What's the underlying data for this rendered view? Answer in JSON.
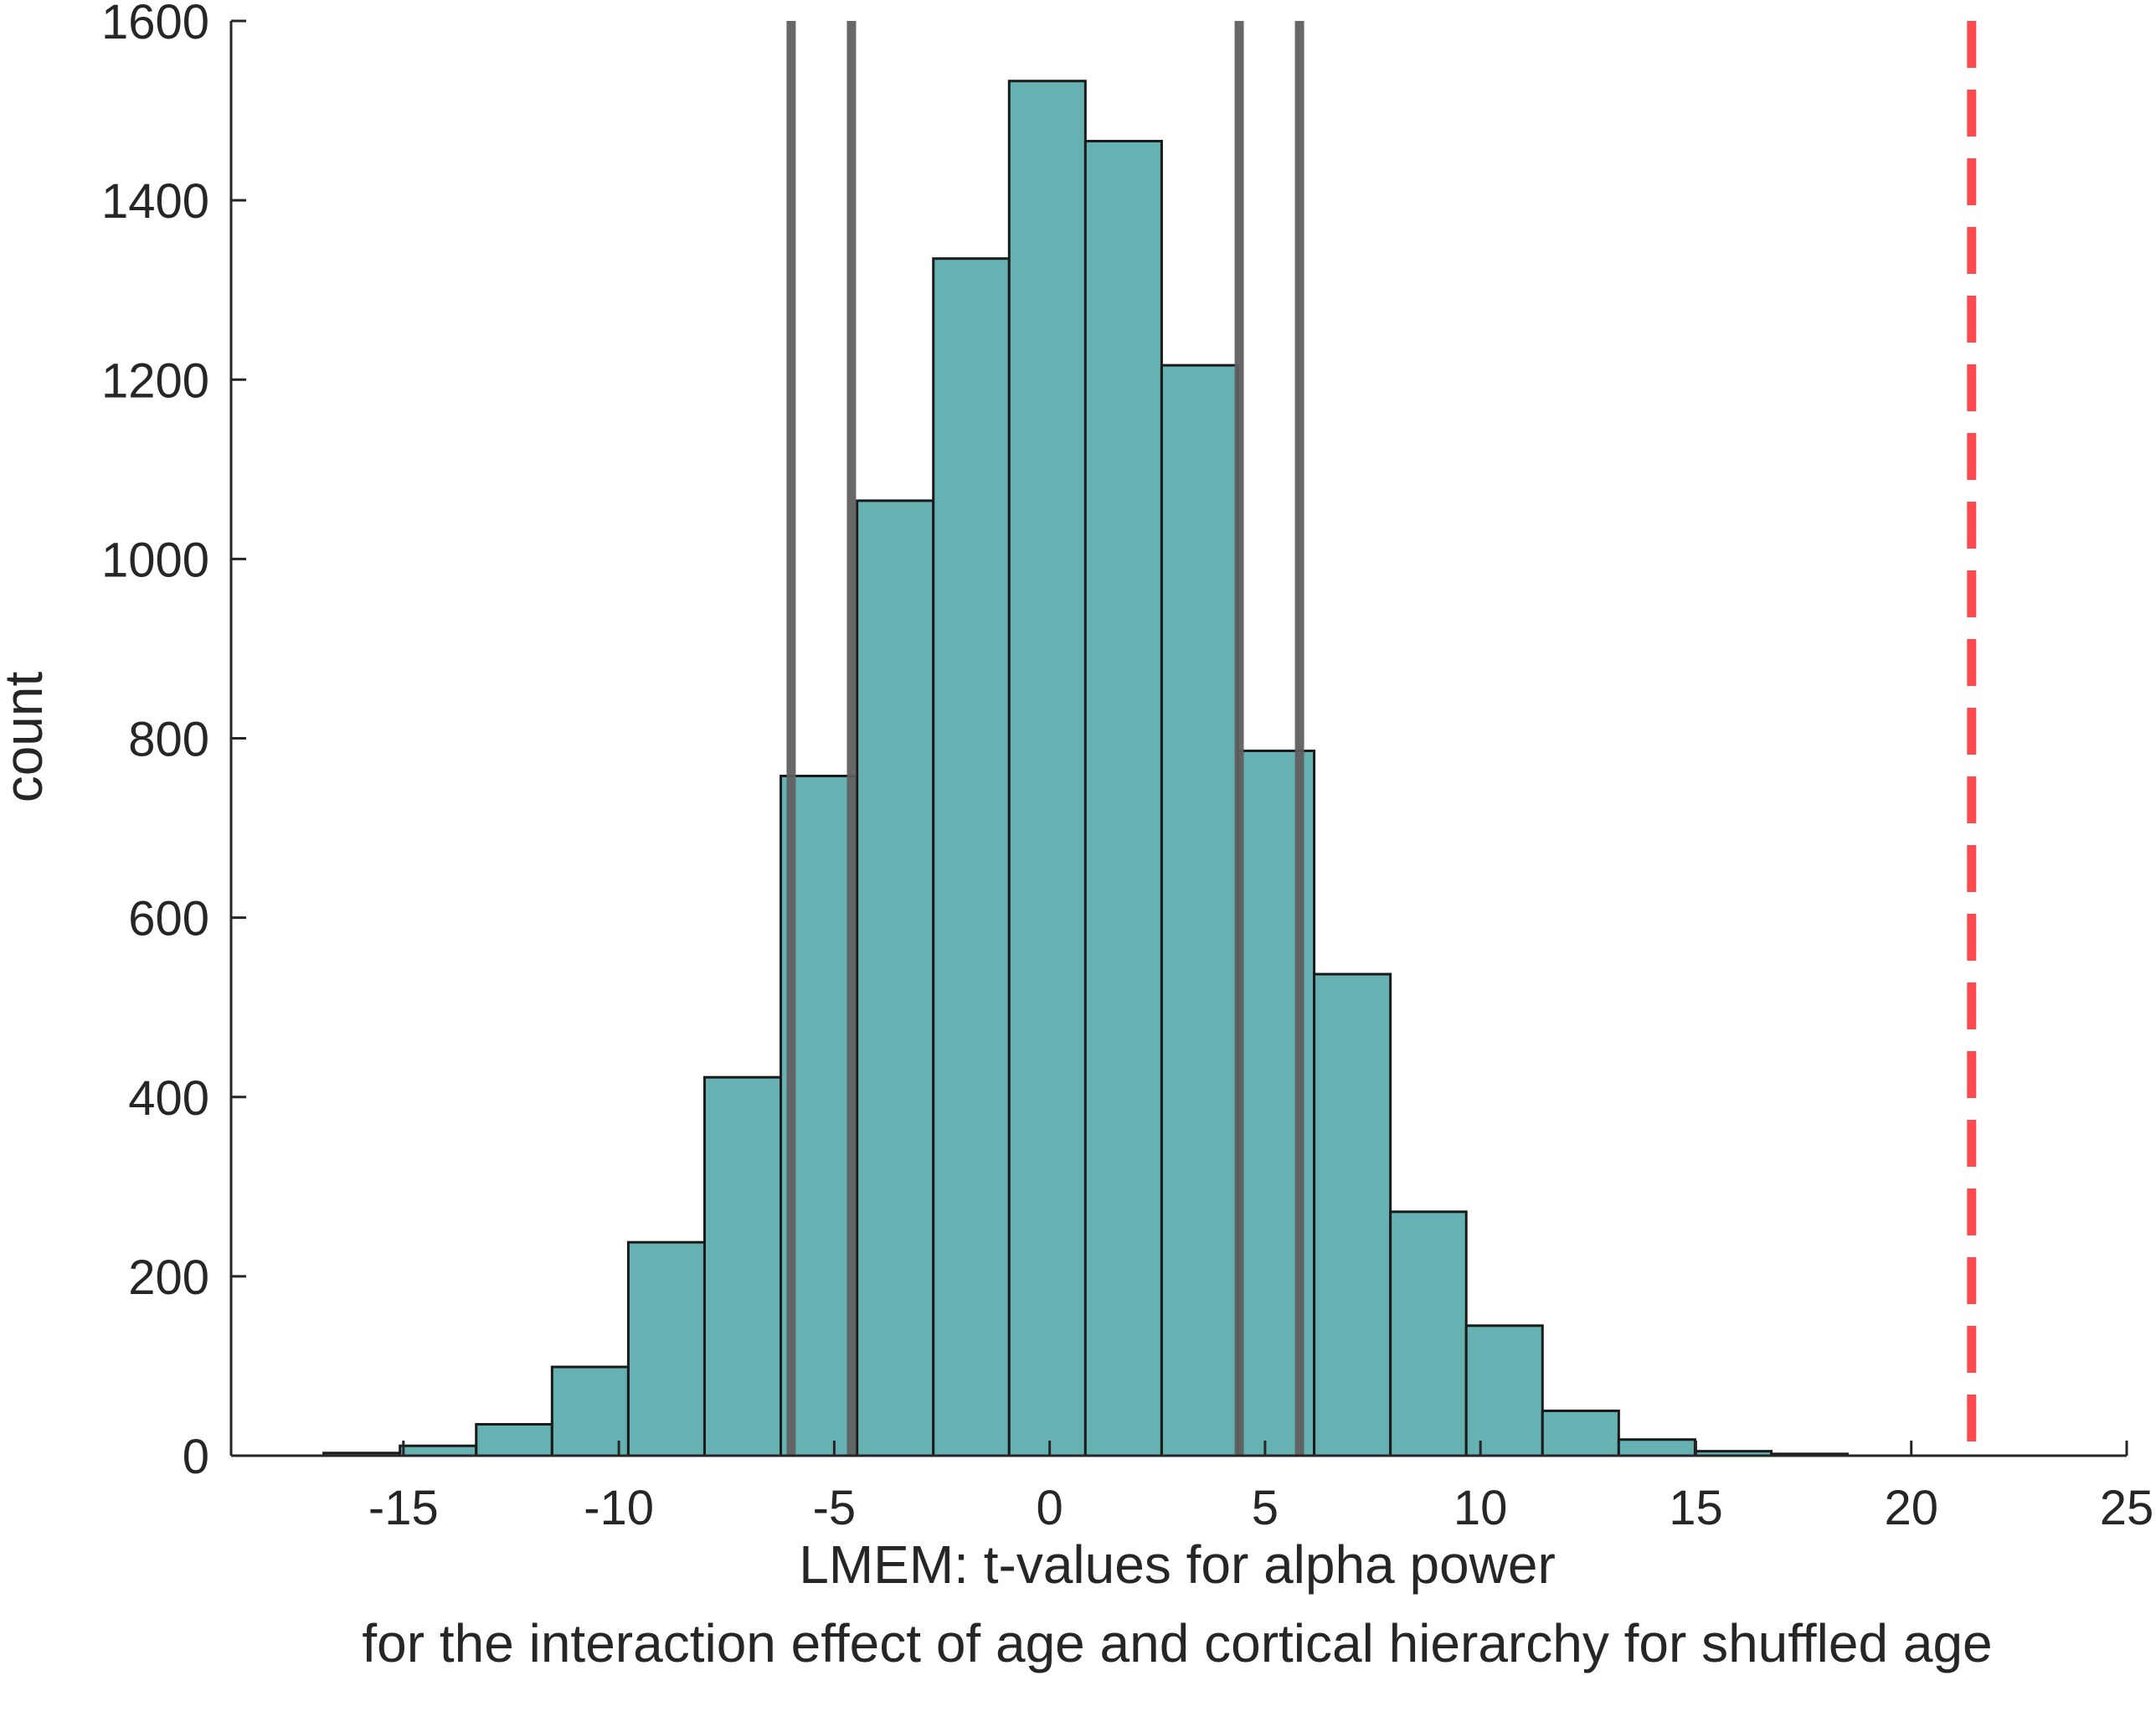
{
  "chart_data": {
    "type": "bar",
    "title": "",
    "xlabel": "LMEM: t-values for alpha power",
    "xlabel_line2": "for the interaction effect of age and cortical hierarchy for shuffled age",
    "ylabel": "count",
    "xlim": [
      -19,
      25
    ],
    "ylim": [
      0,
      1600
    ],
    "xticks": [
      -15,
      -10,
      -5,
      0,
      5,
      10,
      15,
      20,
      25
    ],
    "xtick_labels": [
      "-15",
      "-10",
      "-5",
      "0",
      "5",
      "10",
      "15",
      "20",
      "25"
    ],
    "yticks": [
      0,
      200,
      400,
      600,
      800,
      1000,
      1200,
      1400,
      1600
    ],
    "ytick_labels": [
      "0",
      "200",
      "400",
      "600",
      "800",
      "1000",
      "1200",
      "1400",
      "1600"
    ],
    "grid": false,
    "bin_edges": [
      -16.85,
      -15.08,
      -13.31,
      -11.55,
      -9.78,
      -8.01,
      -6.24,
      -4.47,
      -2.7,
      -0.94,
      0.83,
      2.6,
      4.37,
      6.14,
      7.91,
      9.67,
      11.44,
      13.21,
      14.98,
      16.75,
      18.52
    ],
    "values": [
      3,
      11,
      35,
      99,
      238,
      422,
      758,
      1065,
      1335,
      1533,
      1466,
      1216,
      786,
      537,
      272,
      145,
      50,
      18,
      5,
      2
    ],
    "bar_color": "#66b2b2",
    "bar_edge_color": "#1a1a1a",
    "reference_lines": [
      {
        "x": -6.0,
        "style": "solid",
        "color": "#606060"
      },
      {
        "x": -4.6,
        "style": "solid",
        "color": "#606060"
      },
      {
        "x": 4.4,
        "style": "solid",
        "color": "#606060"
      },
      {
        "x": 5.8,
        "style": "solid",
        "color": "#606060"
      },
      {
        "x": 21.4,
        "style": "dashed",
        "color": "#ff4a4f"
      }
    ]
  }
}
